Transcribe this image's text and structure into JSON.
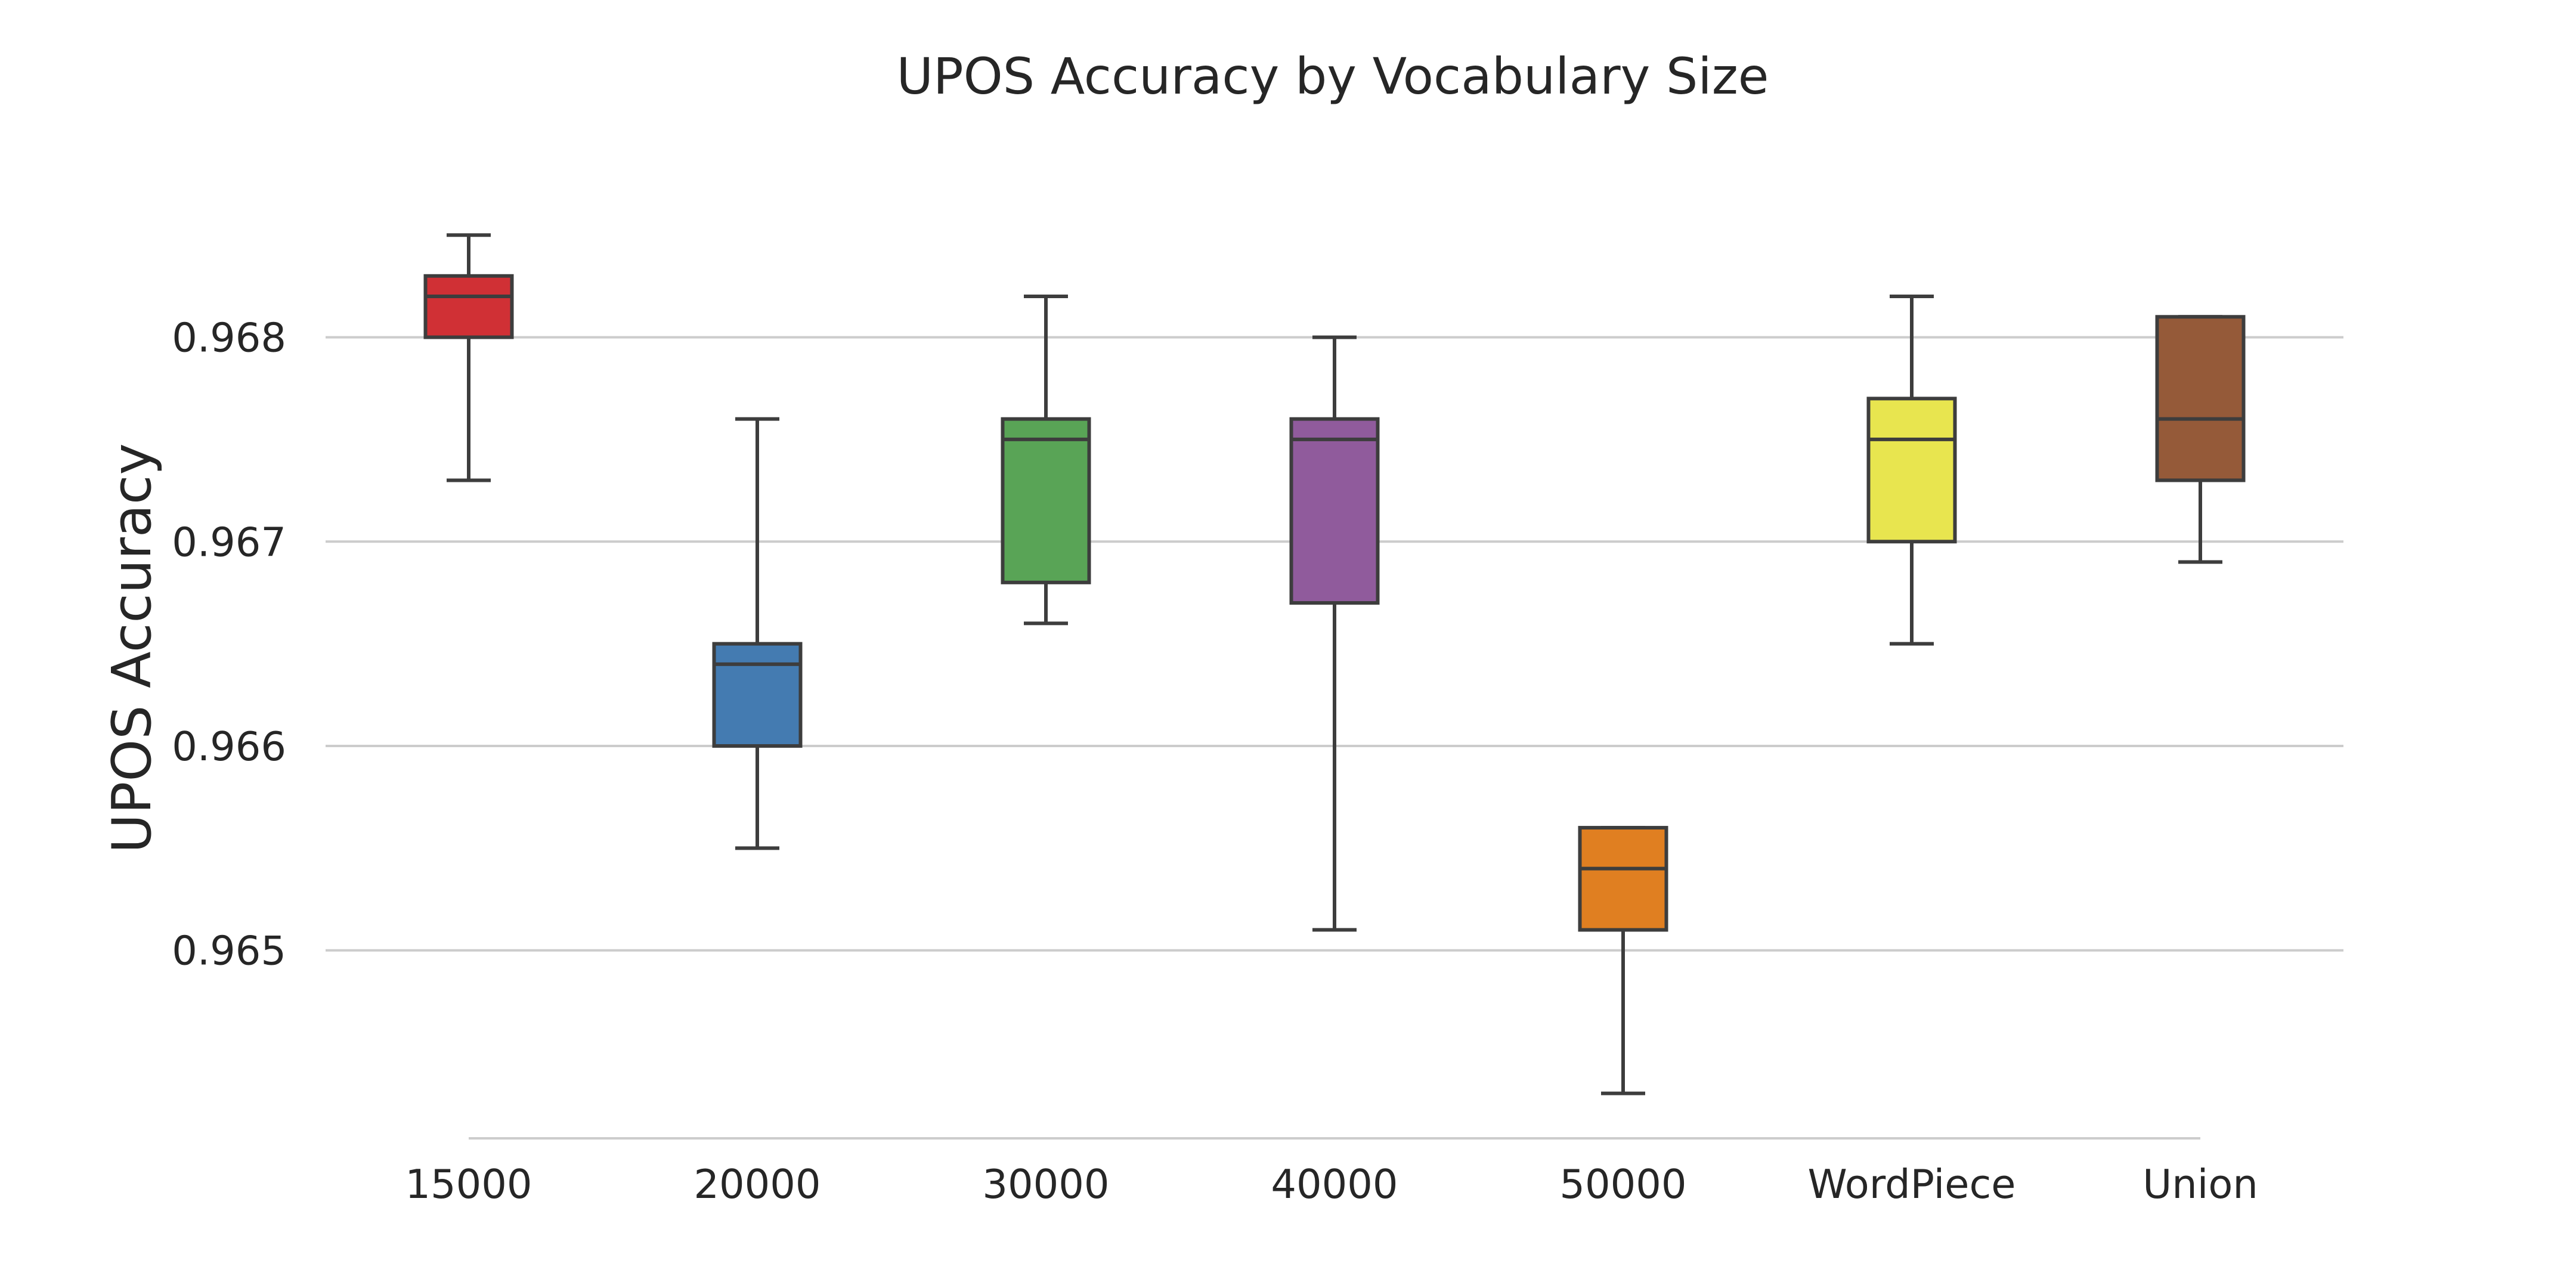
{
  "chart_data": {
    "type": "box",
    "title": "UPOS Accuracy by Vocabulary Size",
    "xlabel": "",
    "ylabel": "UPOS Accuracy",
    "ylim": [
      0.96408,
      0.96895
    ],
    "yticks": [
      0.965,
      0.966,
      0.967,
      0.968
    ],
    "ytick_labels": [
      "0.965",
      "0.966",
      "0.967",
      "0.968"
    ],
    "grid": true,
    "categories": [
      "15000",
      "20000",
      "30000",
      "40000",
      "50000",
      "WordPiece",
      "Union"
    ],
    "series": [
      {
        "category": "15000",
        "min": 0.9673,
        "q1": 0.968,
        "median": 0.9682,
        "q3": 0.9683,
        "max": 0.9685,
        "color": "#d03035"
      },
      {
        "category": "20000",
        "min": 0.9655,
        "q1": 0.966,
        "median": 0.9664,
        "q3": 0.9665,
        "max": 0.9676,
        "color": "#447bb1"
      },
      {
        "category": "30000",
        "min": 0.9666,
        "q1": 0.9668,
        "median": 0.9675,
        "q3": 0.9676,
        "max": 0.9682,
        "color": "#59a456"
      },
      {
        "category": "40000",
        "min": 0.9651,
        "q1": 0.9667,
        "median": 0.9675,
        "q3": 0.9676,
        "max": 0.968,
        "color": "#905b9c"
      },
      {
        "category": "50000",
        "min": 0.9643,
        "q1": 0.9651,
        "median": 0.9654,
        "q3": 0.9656,
        "max": 0.9656,
        "color": "#e07f21"
      },
      {
        "category": "WordPiece",
        "min": 0.9665,
        "q1": 0.967,
        "median": 0.9675,
        "q3": 0.9677,
        "max": 0.9682,
        "color": "#e8e54f"
      },
      {
        "category": "Union",
        "min": 0.9669,
        "q1": 0.9673,
        "median": 0.9676,
        "q3": 0.9681,
        "max": 0.9681,
        "color": "#955a39"
      }
    ]
  }
}
